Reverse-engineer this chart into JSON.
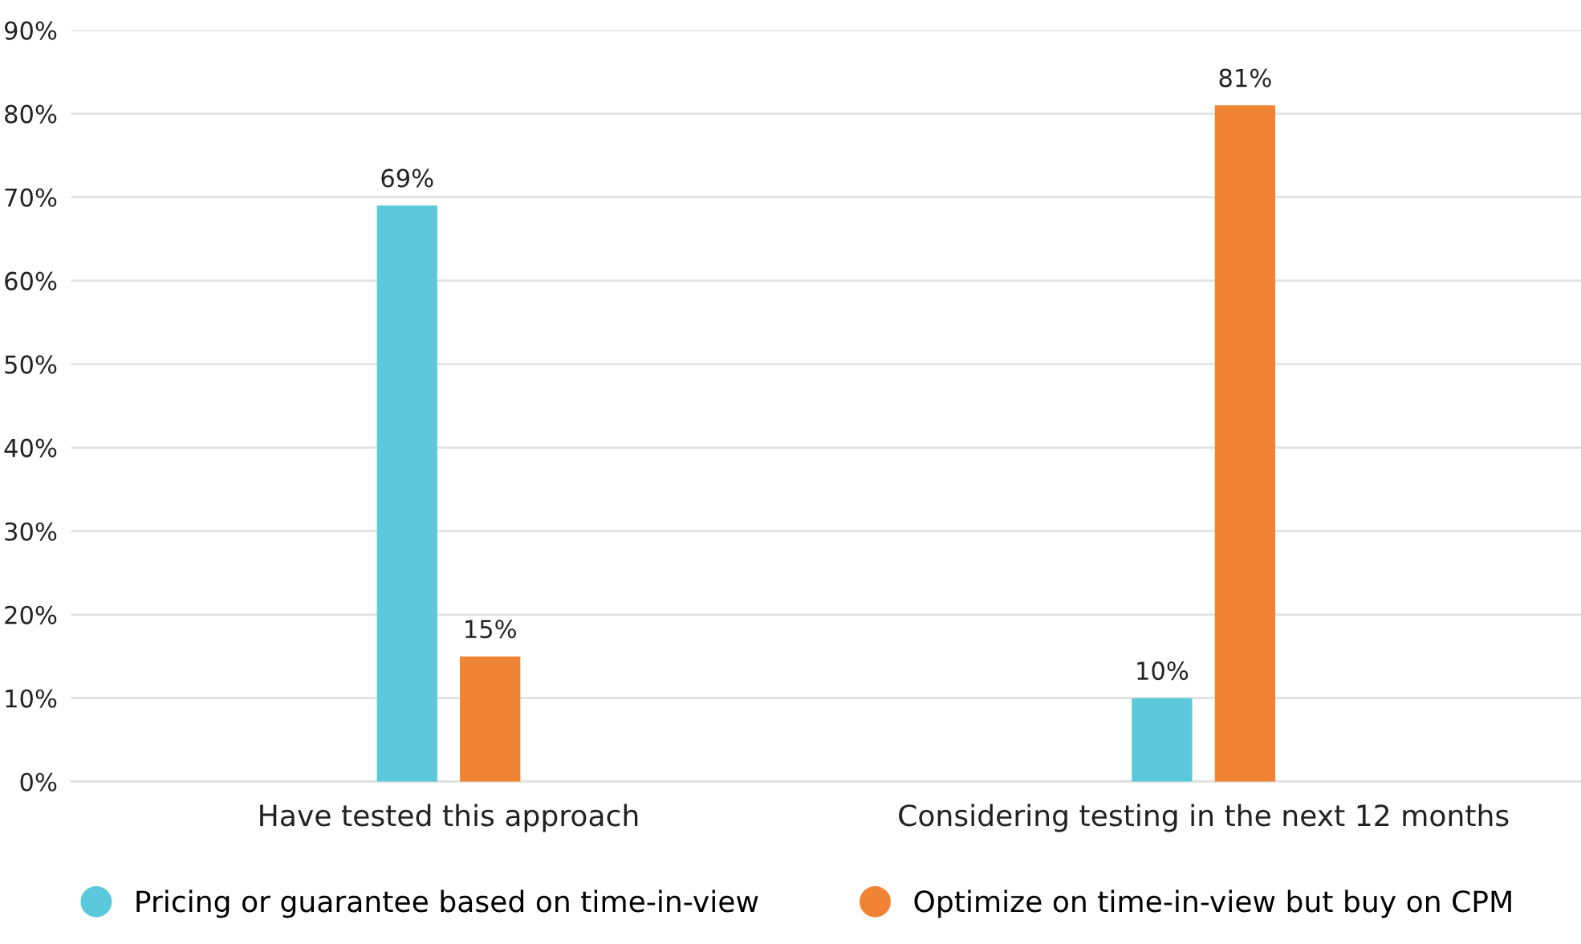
{
  "chart_data": {
    "type": "bar",
    "categories": [
      "Have tested this approach",
      "Considering testing in the next 12 months"
    ],
    "series": [
      {
        "name": "Pricing or guarantee based on time-in-view",
        "color": "#5bc8db",
        "values": [
          69,
          10
        ],
        "value_labels": [
          "69%",
          "10%"
        ]
      },
      {
        "name": "Optimize on time-in-view but buy on CPM",
        "color": "#f08434",
        "values": [
          15,
          81
        ],
        "value_labels": [
          "15%",
          "81%"
        ]
      }
    ],
    "ylim": [
      0,
      90
    ],
    "yticks": [
      {
        "value": 0,
        "label": "0%"
      },
      {
        "value": 10,
        "label": "10%"
      },
      {
        "value": 20,
        "label": "20%"
      },
      {
        "value": 30,
        "label": "30%"
      },
      {
        "value": 40,
        "label": "40%"
      },
      {
        "value": 50,
        "label": "50%"
      },
      {
        "value": 60,
        "label": "60%"
      },
      {
        "value": 70,
        "label": "70%"
      },
      {
        "value": 80,
        "label": "80%"
      },
      {
        "value": 90,
        "label": "90%"
      }
    ],
    "grid": "y",
    "legend": "bottom"
  }
}
